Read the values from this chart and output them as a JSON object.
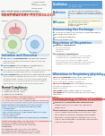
{
  "bg_color": "#f4f4f4",
  "left_bg": "#f0eeee",
  "right_bg": "#ffffff",
  "divider_color": "#cccccc",
  "table_header_bg": "#5b9bd5",
  "table_header_text": "#ffffff",
  "table_row0_bg": "#ddeeff",
  "table_row1_bg": "#ffffff",
  "table_row2_bg": "#fffde7",
  "section_header_color": "#2e75b6",
  "section_header_bg": "#d6e4f0",
  "red_header_color": "#c0392b",
  "red_header_bg": "#fce4e4",
  "blue_text": "#2e75b6",
  "red_text": "#c0392b",
  "dark_text": "#222222",
  "gray_text": "#555555",
  "bullet_color": "#2e75b6",
  "circle_outer1": "#f5cccc",
  "circle_inner1": "#e8a0a0",
  "circle_outer2": "#cce0f5",
  "circle_inner2": "#a0c8e8",
  "circle_outer3": "#e0f0cc",
  "circle_inner3": "#b8d898"
}
